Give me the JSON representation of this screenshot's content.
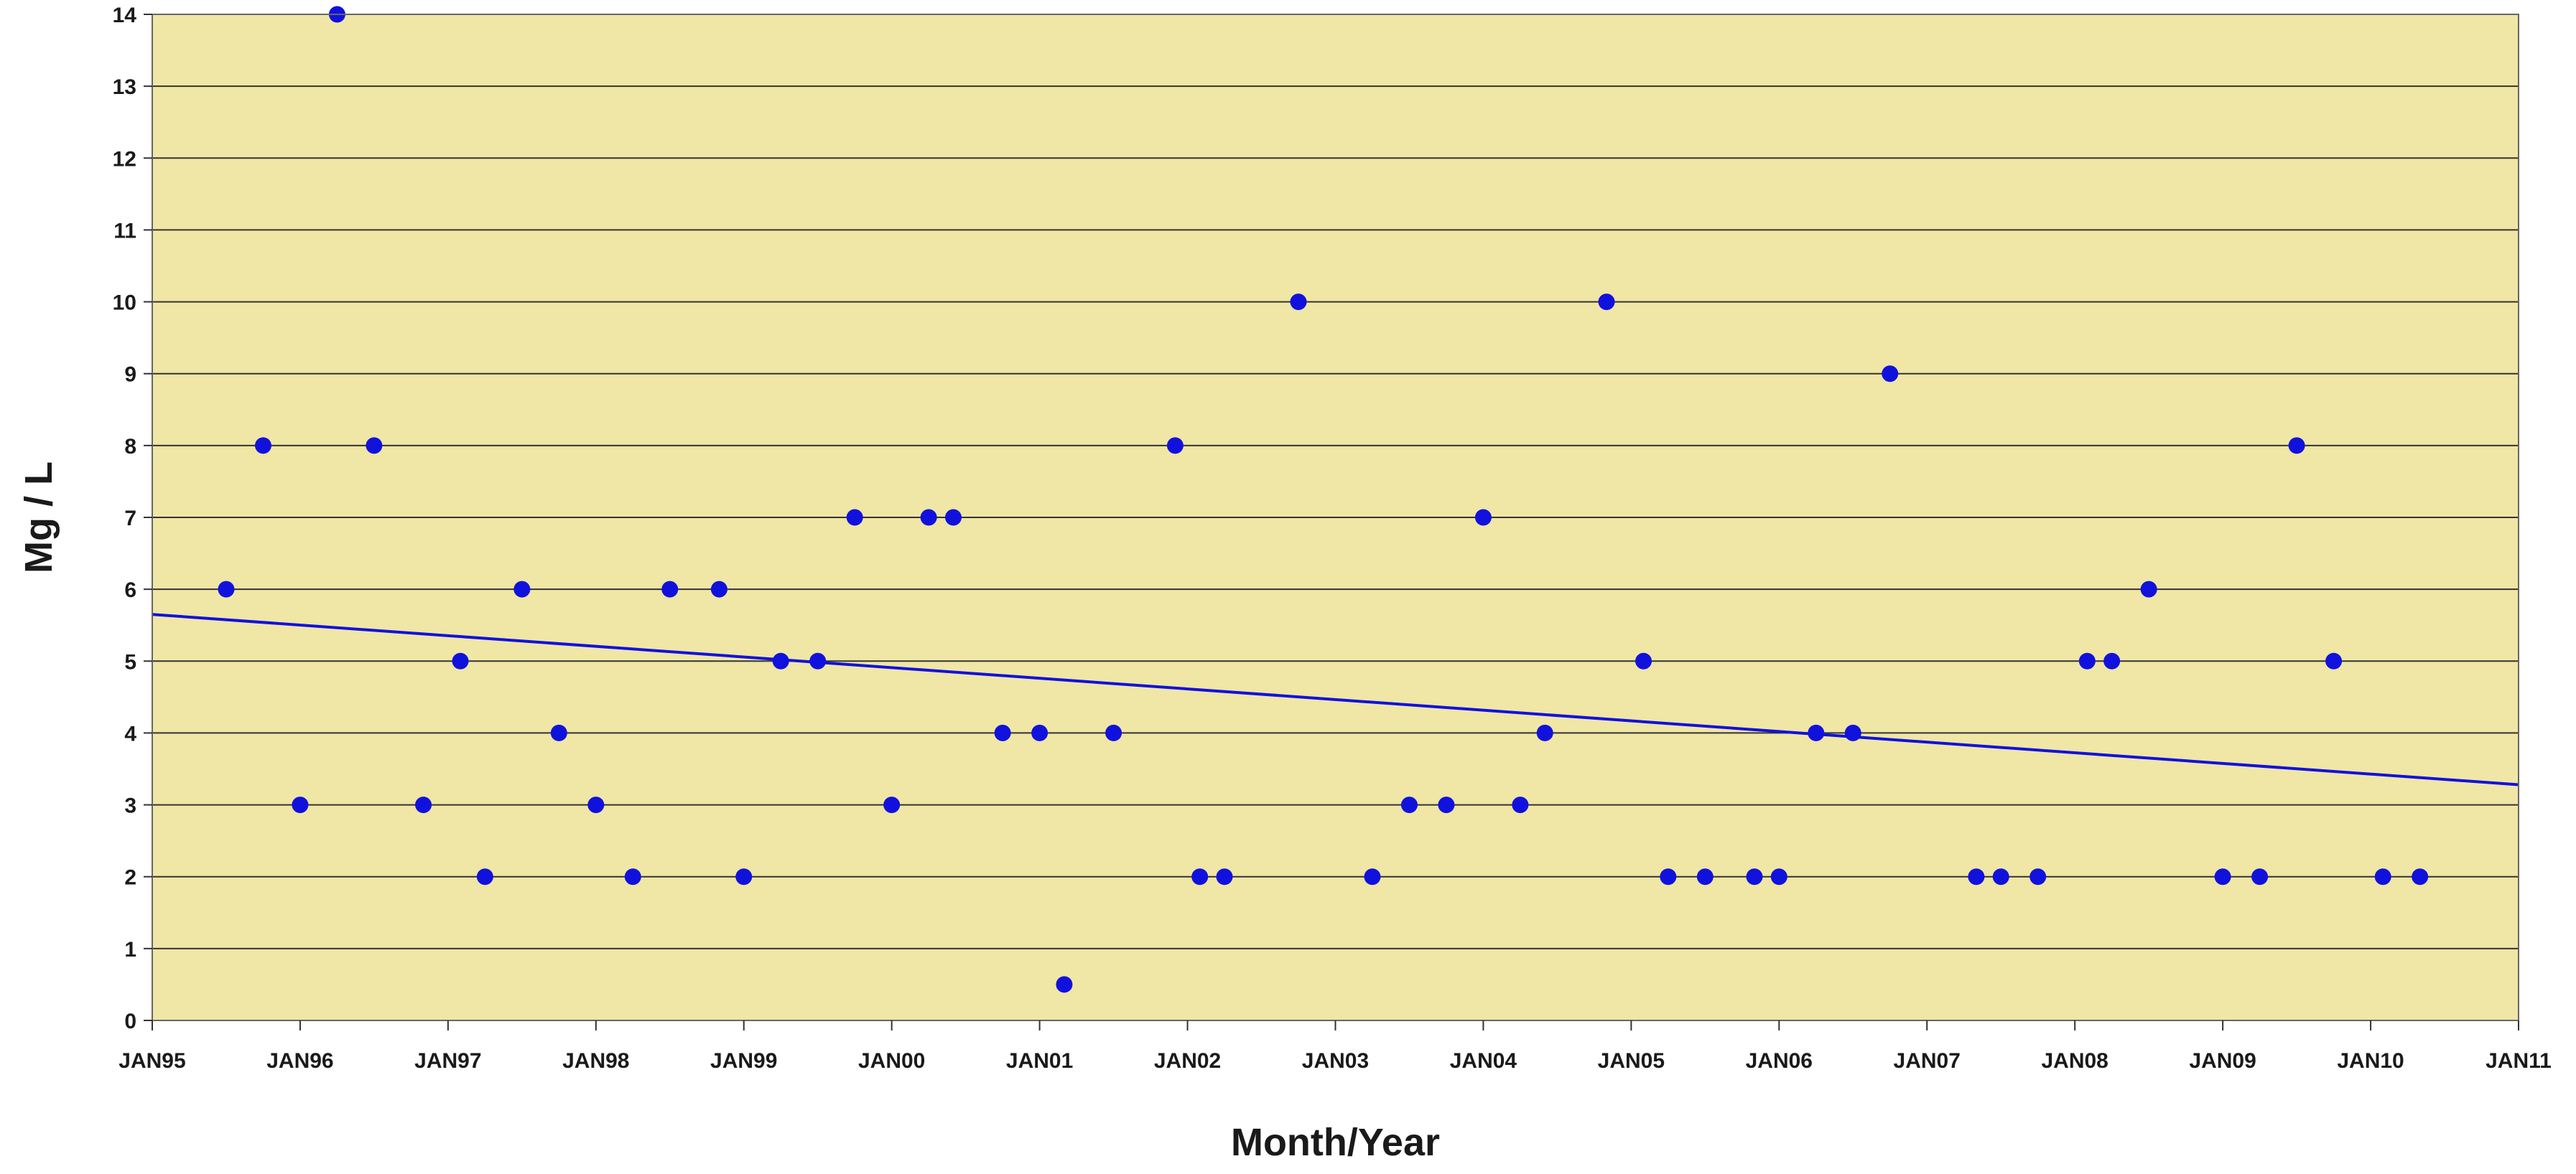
{
  "chart_data": {
    "type": "scatter",
    "title": "",
    "xlabel": "Month/Year",
    "ylabel": "Mg / L",
    "xlim": [
      "1995-01",
      "2011-01"
    ],
    "ylim": [
      0,
      14
    ],
    "yticks": [
      0,
      1,
      2,
      3,
      4,
      5,
      6,
      7,
      8,
      9,
      10,
      11,
      12,
      13,
      14
    ],
    "xticks": [
      "JAN95",
      "JAN96",
      "JAN97",
      "JAN98",
      "JAN99",
      "JAN00",
      "JAN01",
      "JAN02",
      "JAN03",
      "JAN04",
      "JAN05",
      "JAN06",
      "JAN07",
      "JAN08",
      "JAN09",
      "JAN10",
      "JAN11"
    ],
    "grid": "horizontal",
    "colors": {
      "background": "#f0e6a5",
      "points": "#1111dd",
      "trend": "#1111dd",
      "grid": "#333333"
    },
    "series": [
      {
        "points": [
          {
            "x": "1995-07",
            "y": 6
          },
          {
            "x": "1995-10",
            "y": 8
          },
          {
            "x": "1996-01",
            "y": 3
          },
          {
            "x": "1996-04",
            "y": 14
          },
          {
            "x": "1996-07",
            "y": 8
          },
          {
            "x": "1996-11",
            "y": 3
          },
          {
            "x": "1997-02",
            "y": 5
          },
          {
            "x": "1997-04",
            "y": 2
          },
          {
            "x": "1997-07",
            "y": 6
          },
          {
            "x": "1997-10",
            "y": 4
          },
          {
            "x": "1998-01",
            "y": 3
          },
          {
            "x": "1998-04",
            "y": 2
          },
          {
            "x": "1998-07",
            "y": 6
          },
          {
            "x": "1998-11",
            "y": 6
          },
          {
            "x": "1999-01",
            "y": 2
          },
          {
            "x": "1999-04",
            "y": 5
          },
          {
            "x": "1999-07",
            "y": 5
          },
          {
            "x": "1999-10",
            "y": 7
          },
          {
            "x": "2000-01",
            "y": 3
          },
          {
            "x": "2000-04",
            "y": 7
          },
          {
            "x": "2000-06",
            "y": 7
          },
          {
            "x": "2000-10",
            "y": 4
          },
          {
            "x": "2001-01",
            "y": 4
          },
          {
            "x": "2001-03",
            "y": 0.5
          },
          {
            "x": "2001-07",
            "y": 4
          },
          {
            "x": "2001-12",
            "y": 8
          },
          {
            "x": "2002-02",
            "y": 2
          },
          {
            "x": "2002-04",
            "y": 2
          },
          {
            "x": "2002-10",
            "y": 10
          },
          {
            "x": "2003-04",
            "y": 2
          },
          {
            "x": "2003-07",
            "y": 3
          },
          {
            "x": "2003-10",
            "y": 3
          },
          {
            "x": "2004-01",
            "y": 7
          },
          {
            "x": "2004-04",
            "y": 3
          },
          {
            "x": "2004-06",
            "y": 4
          },
          {
            "x": "2004-11",
            "y": 10
          },
          {
            "x": "2005-02",
            "y": 5
          },
          {
            "x": "2005-04",
            "y": 2
          },
          {
            "x": "2005-07",
            "y": 2
          },
          {
            "x": "2005-11",
            "y": 2
          },
          {
            "x": "2006-01",
            "y": 2
          },
          {
            "x": "2006-04",
            "y": 4
          },
          {
            "x": "2006-07",
            "y": 4
          },
          {
            "x": "2006-10",
            "y": 9
          },
          {
            "x": "2007-05",
            "y": 2
          },
          {
            "x": "2007-07",
            "y": 2
          },
          {
            "x": "2007-10",
            "y": 2
          },
          {
            "x": "2008-02",
            "y": 5
          },
          {
            "x": "2008-04",
            "y": 5
          },
          {
            "x": "2008-07",
            "y": 6
          },
          {
            "x": "2009-01",
            "y": 2
          },
          {
            "x": "2009-04",
            "y": 2
          },
          {
            "x": "2009-07",
            "y": 8
          },
          {
            "x": "2009-10",
            "y": 5
          },
          {
            "x": "2010-02",
            "y": 2
          },
          {
            "x": "2010-05",
            "y": 2
          }
        ]
      }
    ],
    "trendline": {
      "start": {
        "x": "1995-01",
        "y": 5.65
      },
      "end": {
        "x": "2011-01",
        "y": 3.28
      }
    }
  }
}
